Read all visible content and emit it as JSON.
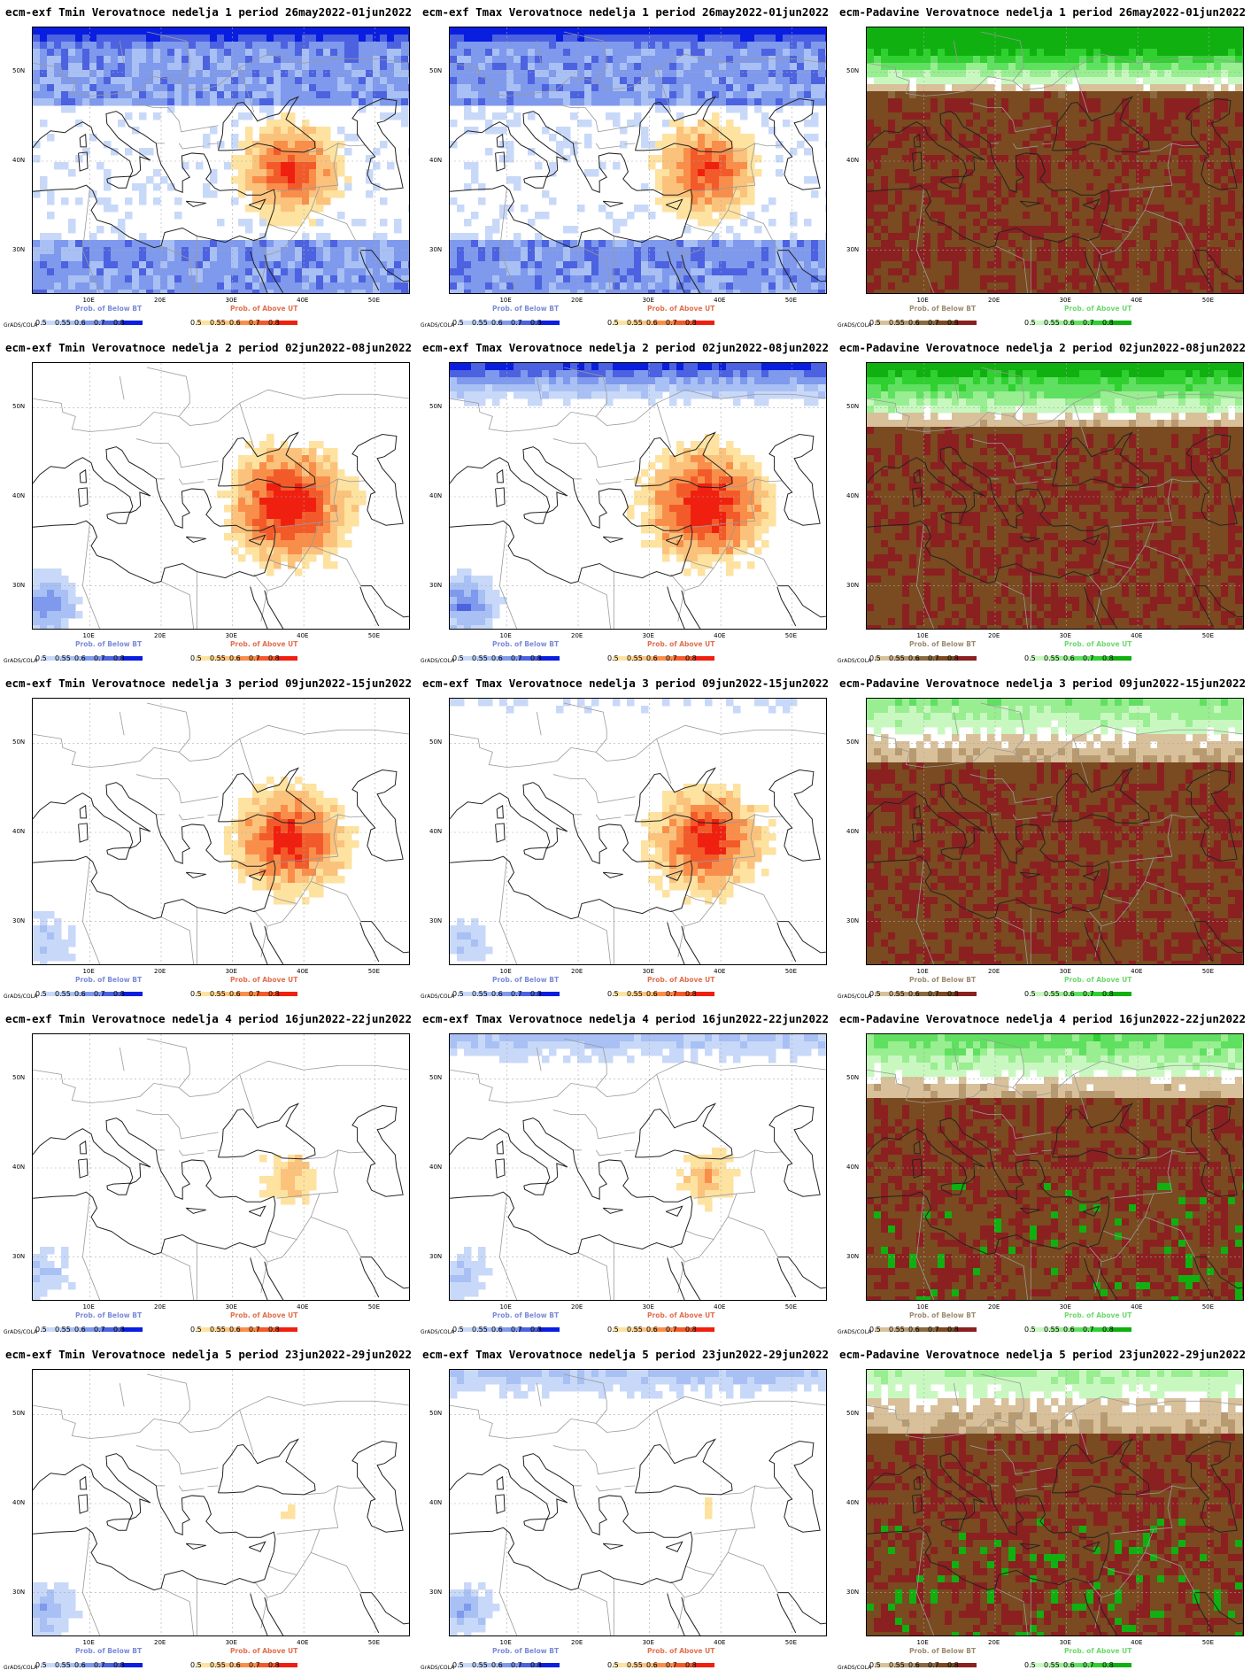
{
  "panels": [
    {
      "title": "ecm-exf Tmin Verovatnoce nedelja 1 period 26may2022-01jun2022",
      "var": "tmin",
      "week": 1,
      "cb1_title": "Prob. of Below BT",
      "cb2_title": "Prob. of Above UT"
    },
    {
      "title": "ecm-exf Tmax Verovatnoce nedelja 1 period 26may2022-01jun2022",
      "var": "tmax",
      "week": 1,
      "cb1_title": "Prob. of Below BT",
      "cb2_title": "Prob. of Above UT"
    },
    {
      "title": "ecm-Padavine Verovatnoce nedelja 1 period 26may2022-01jun2022",
      "var": "prec",
      "week": 1,
      "cb1_title": "Prob. of Below BT",
      "cb2_title": "Prob. of Above UT"
    },
    {
      "title": "ecm-exf Tmin Verovatnoce nedelja 2 period 02jun2022-08jun2022",
      "var": "tmin",
      "week": 2,
      "cb1_title": "Prob. of Below BT",
      "cb2_title": "Prob. of Above UT"
    },
    {
      "title": "ecm-exf Tmax Verovatnoce nedelja 2 period 02jun2022-08jun2022",
      "var": "tmax",
      "week": 2,
      "cb1_title": "Prob. of Below BT",
      "cb2_title": "Prob. of Above UT"
    },
    {
      "title": "ecm-Padavine Verovatnoce nedelja 2 period 02jun2022-08jun2022",
      "var": "prec",
      "week": 2,
      "cb1_title": "Prob. of Below BT",
      "cb2_title": "Prob. of Above UT"
    },
    {
      "title": "ecm-exf Tmin Verovatnoce nedelja 3 period 09jun2022-15jun2022",
      "var": "tmin",
      "week": 3,
      "cb1_title": "Prob. of Below BT",
      "cb2_title": "Prob. of Above UT"
    },
    {
      "title": "ecm-exf Tmax Verovatnoce nedelja 3 period 09jun2022-15jun2022",
      "var": "tmax",
      "week": 3,
      "cb1_title": "Prob. of Below BT",
      "cb2_title": "Prob. of Above UT"
    },
    {
      "title": "ecm-Padavine Verovatnoce nedelja 3 period 09jun2022-15jun2022",
      "var": "prec",
      "week": 3,
      "cb1_title": "Prob. of Below BT",
      "cb2_title": "Prob. of Above UT"
    },
    {
      "title": "ecm-exf Tmin Verovatnoce nedelja 4 period 16jun2022-22jun2022",
      "var": "tmin",
      "week": 4,
      "cb1_title": "Prob. of Below BT",
      "cb2_title": "Prob. of Above UT"
    },
    {
      "title": "ecm-exf Tmax Verovatnoce nedelja 4 period 16jun2022-22jun2022",
      "var": "tmax",
      "week": 4,
      "cb1_title": "Prob. of Below BT",
      "cb2_title": "Prob. of Above UT"
    },
    {
      "title": "ecm-Padavine Verovatnoce nedelja 4 period 16jun2022-22jun2022",
      "var": "prec",
      "week": 4,
      "cb1_title": "Prob. of Below BT",
      "cb2_title": "Prob. of Above UT"
    },
    {
      "title": "ecm-exf Tmin Verovatnoce nedelja 5 period 23jun2022-29jun2022",
      "var": "tmin",
      "week": 5,
      "cb1_title": "Prob. of Below BT",
      "cb2_title": "Prob. of Above UT"
    },
    {
      "title": "ecm-exf Tmax Verovatnoce nedelja 5 period 23jun2022-29jun2022",
      "var": "tmax",
      "week": 5,
      "cb1_title": "Prob. of Below BT",
      "cb2_title": "Prob. of Above UT"
    },
    {
      "title": "ecm-Padavine Verovatnoce nedelja 5 period 23jun2022-29jun2022",
      "var": "prec",
      "week": 5,
      "cb1_title": "Prob. of Below BT",
      "cb2_title": "Prob. of Above UT"
    }
  ],
  "lat_labels": [
    "50N",
    "40N",
    "30N"
  ],
  "lon_labels": [
    "10E",
    "20E",
    "30E",
    "40E",
    "50E"
  ],
  "colorbar_ticks": [
    "0.5",
    "0.55",
    "0.6",
    "0.7",
    "0.8"
  ],
  "grads_label": "GrADS/COLA",
  "colors": {
    "below_temp": [
      "#c8d8f8",
      "#a8c0f4",
      "#7f99ec",
      "#4c62e0",
      "#0a1ee0"
    ],
    "above_temp": [
      "#fde2a0",
      "#fbc27c",
      "#f98e4a",
      "#f35a2a",
      "#f02010"
    ],
    "below_prec": [
      "#d8c09a",
      "#b89a70",
      "#8a6a40",
      "#7a4a20",
      "#8b2020"
    ],
    "above_prec": [
      "#c8f8c0",
      "#98ee90",
      "#60e060",
      "#30d030",
      "#10b010"
    ]
  }
}
